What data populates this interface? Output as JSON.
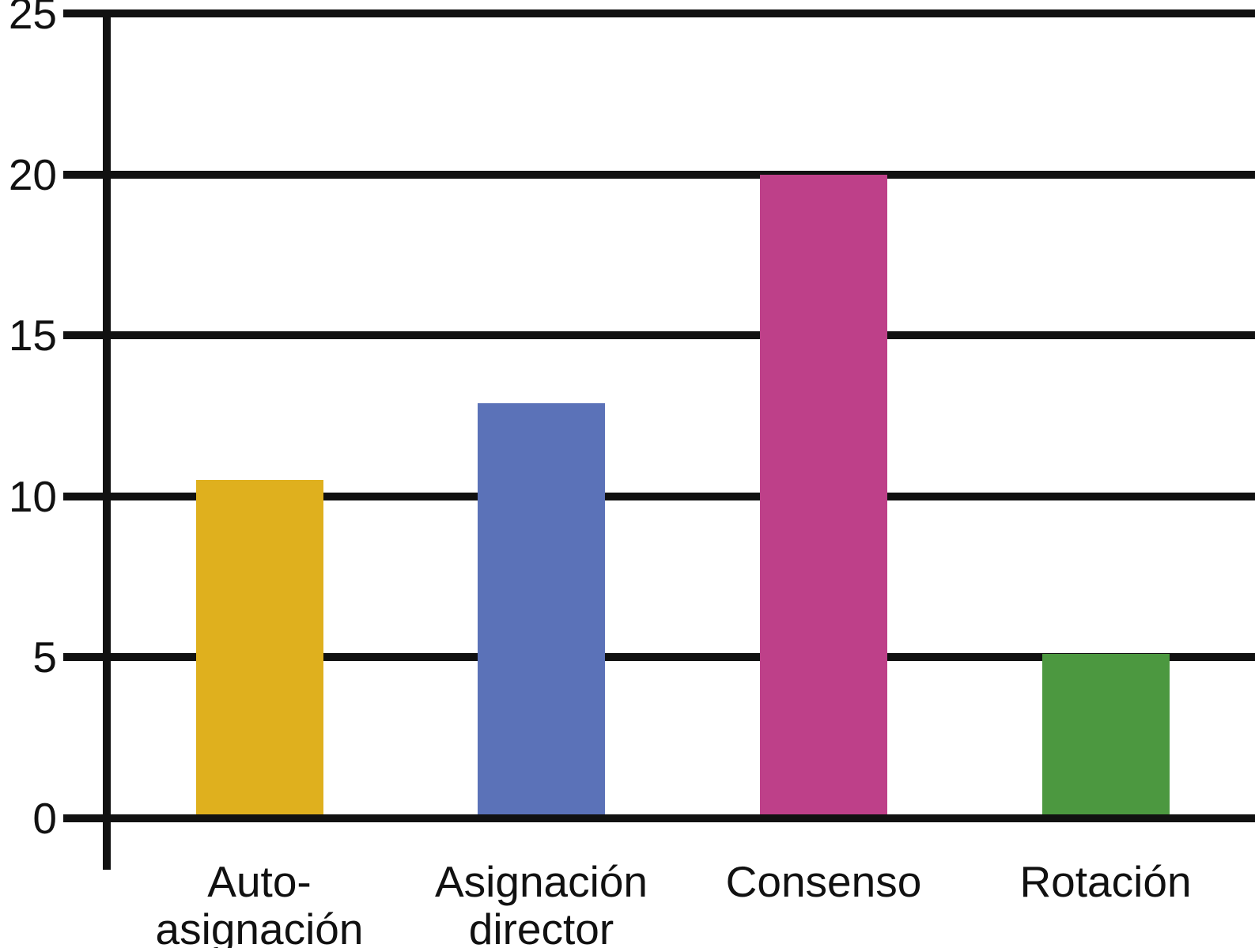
{
  "chart_data": {
    "type": "bar",
    "title": "",
    "xlabel": "",
    "ylabel": "",
    "categories": [
      "Auto-\nasignación",
      "Asignación\ndirector",
      "Consenso",
      "Rotación"
    ],
    "values": [
      10.5,
      12.9,
      20,
      5.1
    ],
    "bar_colors": [
      "#dfb01e",
      "#5b72b8",
      "#be4089",
      "#4c9840"
    ],
    "yticks": [
      0,
      5,
      10,
      15,
      20,
      25
    ],
    "ylim": [
      0,
      25
    ],
    "grid": "horizontal",
    "legend": "none",
    "axis_color": "#111111",
    "background_color": "#ffffff"
  }
}
